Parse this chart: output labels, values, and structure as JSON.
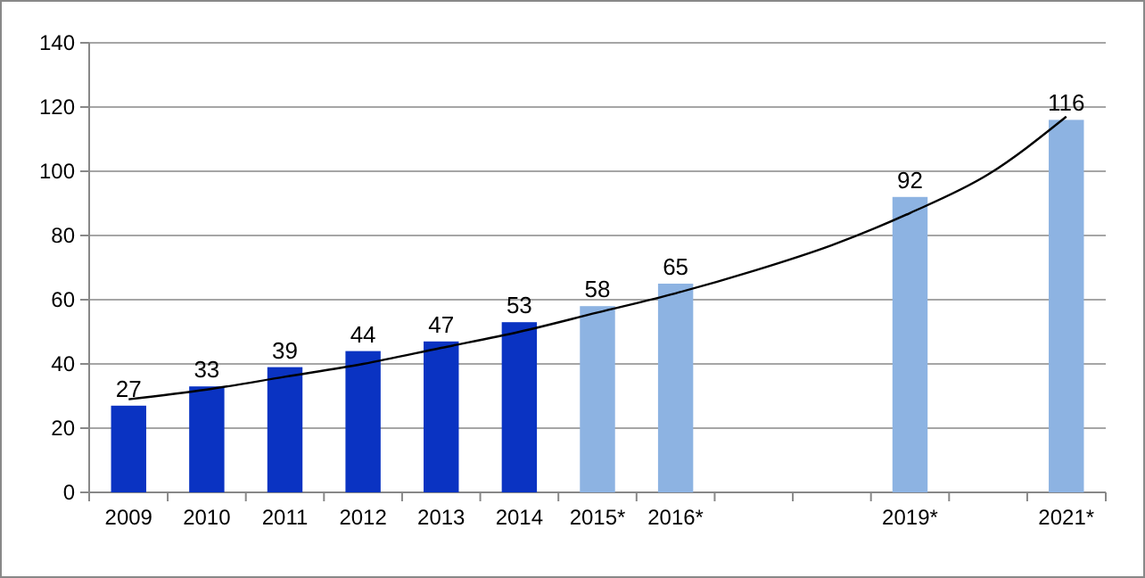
{
  "chart_data": {
    "type": "bar",
    "categories": [
      "2009",
      "2010",
      "2011",
      "2012",
      "2013",
      "2014",
      "2015*",
      "2016*",
      null,
      null,
      "2019*",
      null,
      "2021*"
    ],
    "series": [
      {
        "colors": [
          "#0a33c2",
          "#0a33c2",
          "#0a33c2",
          "#0a33c2",
          "#0a33c2",
          "#0a33c2",
          "#8db3e2",
          "#8db3e2",
          null,
          null,
          "#8db3e2",
          null,
          "#8db3e2"
        ],
        "values": [
          27,
          33,
          39,
          44,
          47,
          53,
          58,
          65,
          null,
          null,
          92,
          null,
          116
        ],
        "value_labels": [
          "27",
          "33",
          "39",
          "44",
          "47",
          "53",
          "58",
          "65",
          null,
          null,
          "92",
          null,
          "116"
        ]
      },
      {
        "type": "line",
        "color": "#000000",
        "values": [
          29,
          32,
          36,
          40,
          45,
          50,
          56,
          62,
          69,
          77,
          87,
          99,
          117
        ]
      }
    ],
    "ylim": [
      0,
      140
    ],
    "yticks": [
      0,
      20,
      40,
      60,
      80,
      100,
      120,
      140
    ],
    "grid": "y"
  }
}
